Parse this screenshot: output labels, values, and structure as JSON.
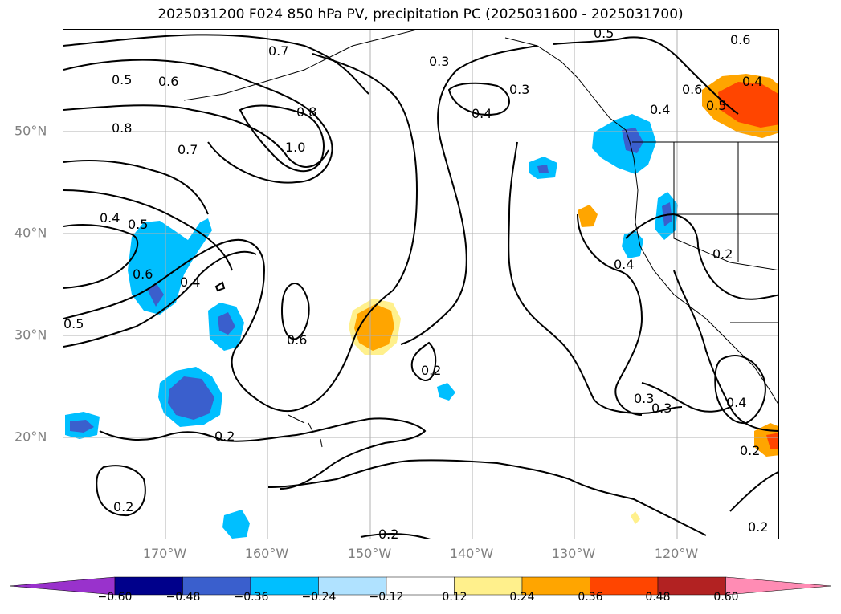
{
  "title": "2025031200 F024 850 hPa PV, precipitation PC (2025031600 - 2025031700)",
  "lat_labels": [
    "50°N",
    "40°N",
    "30°N",
    "20°N"
  ],
  "lon_labels": [
    "170°W",
    "160°W",
    "150°W",
    "140°W",
    "130°W",
    "120°W"
  ],
  "contour_labels": [
    "0.5",
    "0.6",
    "0.8",
    "0.7",
    "1.0",
    "0.8",
    "0.7",
    "0.4",
    "0.5",
    "0.6",
    "0.4",
    "0.5",
    "0.6",
    "0.2",
    "0.3",
    "0.3",
    "0.4",
    "0.5",
    "0.6",
    "0.6",
    "0.4",
    "0.5",
    "0.4",
    "0.4",
    "0.2",
    "0.2",
    "0.3",
    "0.3",
    "0.4",
    "0.2",
    "0.2",
    "0.2",
    "0.2"
  ],
  "colorbar": {
    "ticks": [
      "−0.60",
      "−0.48",
      "−0.36",
      "−0.24",
      "−0.12",
      "0.12",
      "0.24",
      "0.36",
      "0.48",
      "0.60"
    ],
    "colors": [
      "#9932cc",
      "#00008b",
      "#3a5fcd",
      "#00bfff",
      "#b0e2ff",
      "#ffffff",
      "#fff08c",
      "#ffa500",
      "#ff4500",
      "#b22222",
      "#ff8cb4"
    ]
  }
}
